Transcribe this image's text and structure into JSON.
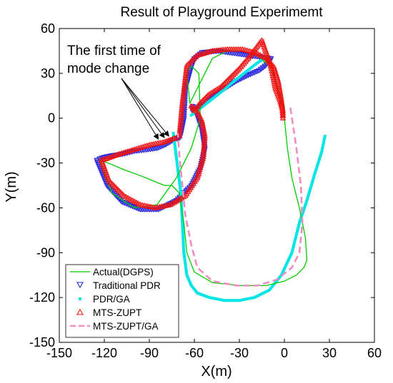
{
  "chart_data": {
    "type": "line",
    "title": "Result of Playground Experimemt",
    "xlabel": "X(m)",
    "ylabel": "Y(m)",
    "xlim": [
      -150,
      60
    ],
    "ylim": [
      -150,
      60
    ],
    "xticks": [
      -150,
      -120,
      -90,
      -60,
      -30,
      0,
      30,
      60
    ],
    "yticks": [
      -150,
      -120,
      -90,
      -60,
      -30,
      0,
      30,
      60
    ],
    "xtick_labels": [
      "-150",
      "-120",
      "-90",
      "-60",
      "-30",
      "0",
      "30",
      "60"
    ],
    "ytick_labels": [
      "-150",
      "-120",
      "-90",
      "-60",
      "-30",
      "0",
      "30",
      "60"
    ],
    "grid": false,
    "legend_position": "bottom-left",
    "annotation": {
      "lines": [
        "The first time of",
        "mode change"
      ],
      "arrow_targets": [
        [
          -84,
          -14
        ],
        [
          -80,
          -13
        ],
        [
          -77,
          -12
        ]
      ]
    },
    "colors": {
      "actual": "#00cc00",
      "traditional_pdr": "#2222dd",
      "pdr_ga": "#00e5e5",
      "mts_zupt": "#ee1111",
      "mts_zupt_ga": "#f08cc0"
    },
    "series": [
      {
        "name": "Actual(DGPS)",
        "style": "line",
        "x": [
          0,
          2,
          5,
          10,
          14,
          15,
          13,
          8,
          0,
          -12,
          -30,
          -48,
          -60,
          -65,
          -67,
          -70,
          -75,
          -80,
          -85,
          -92,
          -100,
          -108,
          -115,
          -120,
          -123,
          -115,
          -100,
          -85,
          -72,
          -62,
          -56,
          -57,
          -62,
          -65,
          -63,
          -58,
          -48,
          -38,
          -28,
          -18,
          -10,
          -4,
          0,
          0
        ],
        "y": [
          0,
          -20,
          -40,
          -60,
          -80,
          -95,
          -100,
          -105,
          -109,
          -112,
          -112,
          -110,
          -103,
          -90,
          -70,
          -50,
          -45,
          -45,
          -43,
          -40,
          -37,
          -34,
          -31,
          -29,
          -28,
          -50,
          -60,
          -58,
          -40,
          -20,
          0,
          30,
          35,
          30,
          10,
          20,
          40,
          45,
          45,
          42,
          35,
          20,
          8,
          0
        ]
      },
      {
        "name": "Traditional PDR",
        "style": "triangle-down markers",
        "x": [
          -70,
          -75,
          -80,
          -85,
          -92,
          -100,
          -108,
          -115,
          -120,
          -123,
          -125,
          -118,
          -108,
          -96,
          -84,
          -72,
          -62,
          -56,
          -53,
          -55,
          -58,
          -61,
          -61,
          -56,
          -48,
          -40,
          -32,
          -24,
          -17,
          -13,
          -11,
          -9,
          -44,
          -55,
          -60,
          -62,
          -66,
          -67,
          -69,
          -70
        ],
        "y": [
          -13,
          -15,
          -18,
          -20,
          -21,
          -22,
          -24,
          -25,
          -26,
          -27,
          -28,
          -45,
          -56,
          -61,
          -61,
          -55,
          -45,
          -33,
          -20,
          -7,
          2,
          8,
          5,
          8,
          14,
          20,
          25,
          29,
          32,
          35,
          38,
          40,
          45,
          44,
          40,
          35,
          20,
          0,
          -10,
          -13
        ]
      },
      {
        "name": "PDR/GA",
        "style": "dot markers",
        "x": [
          -74,
          -69,
          -67,
          -65,
          -62,
          -58,
          -50,
          -40,
          -30,
          -20,
          -10,
          -2,
          5,
          10,
          15,
          20,
          25,
          27
        ],
        "y": [
          -10,
          -50,
          -90,
          -105,
          -112,
          -117,
          -120,
          -122,
          -122,
          -120,
          -115,
          -105,
          -90,
          -70,
          -55,
          -38,
          -22,
          -12
        ],
        "extra_segment": {
          "x": [
            -62,
            -44,
            -32,
            -18,
            -12
          ],
          "y": [
            2,
            16,
            26,
            37,
            41
          ]
        }
      },
      {
        "name": "MTS-ZUPT",
        "style": "triangle-up markers",
        "x": [
          -72,
          -80,
          -90,
          -100,
          -110,
          -118,
          -122,
          -117,
          -107,
          -96,
          -86,
          -76,
          -66,
          -58,
          -54,
          -53,
          -55,
          -58,
          -62,
          -60,
          -56,
          -50,
          -42,
          -36,
          -30,
          -24,
          -18,
          -15,
          -13,
          -10,
          -8,
          -6,
          -3,
          -1,
          -1
        ],
        "y": [
          -13,
          -16,
          -18,
          -21,
          -24,
          -27,
          -28,
          -42,
          -52,
          -58,
          -60,
          -58,
          -52,
          -40,
          -26,
          -12,
          -2,
          4,
          8,
          5,
          10,
          16,
          21,
          27,
          33,
          40,
          48,
          52,
          46,
          38,
          30,
          20,
          12,
          5,
          0
        ],
        "extra_segment": {
          "x": [
            -70,
            -68,
            -65,
            -58,
            -48,
            -38,
            -28,
            -20,
            -12,
            -7,
            -4,
            -2,
            -1
          ],
          "y": [
            -12,
            10,
            35,
            42,
            45,
            46,
            46,
            44,
            40,
            34,
            24,
            12,
            2
          ]
        }
      },
      {
        "name": "MTS-ZUPT/GA",
        "style": "dashed line",
        "x": [
          4,
          8,
          11,
          12,
          10,
          5,
          -5,
          -18,
          -32,
          -48,
          -58,
          -62,
          -66,
          -68,
          -70,
          -71
        ],
        "y": [
          7,
          -20,
          -45,
          -70,
          -90,
          -100,
          -108,
          -112,
          -112,
          -109,
          -100,
          -85,
          -65,
          -45,
          -25,
          -10
        ]
      }
    ]
  }
}
